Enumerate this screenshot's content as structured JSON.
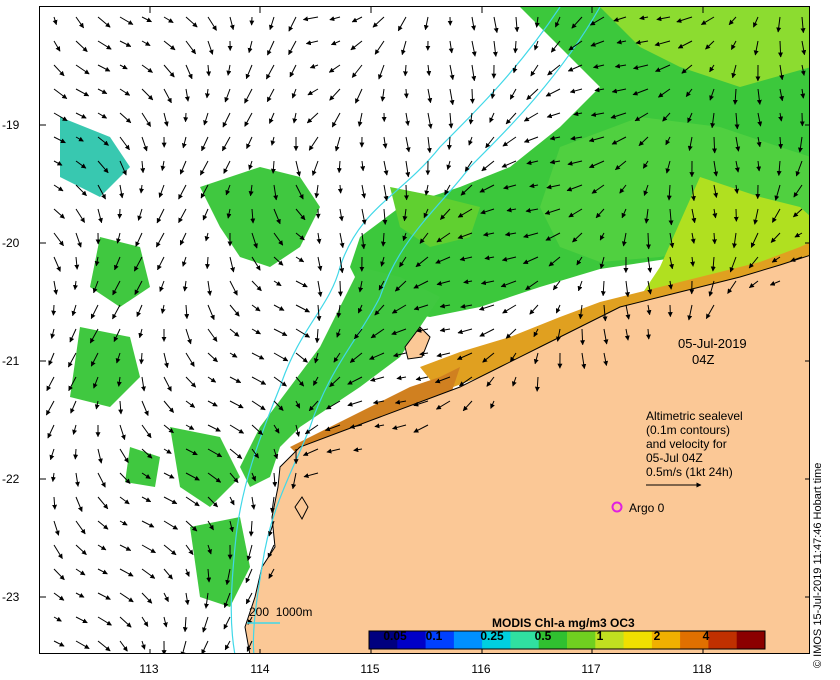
{
  "date_label": "05-Jul-2019",
  "time_label": "04Z",
  "legend": {
    "line1": "Altimetric sealevel",
    "line2": "(0.1m contours)",
    "line3": "and velocity for",
    "line4": "05-Jul 04Z",
    "line5": "0.5m/s (1kt 24h)"
  },
  "argo_label": "Argo 0",
  "bathy_label": "200  1000m",
  "colorbar": {
    "title": "MODIS Chl-a mg/m3 OC3",
    "ticks": [
      "0.05",
      "0.1",
      "0.25",
      "0.5",
      "1",
      "2",
      "4"
    ],
    "colors": [
      "#00007f",
      "#0000c8",
      "#0040ff",
      "#0090ff",
      "#00d0e0",
      "#30e0a0",
      "#30c030",
      "#70d020",
      "#c0e020",
      "#f0e000",
      "#f0b000",
      "#e07000",
      "#c03000",
      "#8b0000"
    ]
  },
  "axes": {
    "x_ticks": [
      "113",
      "114",
      "115",
      "116",
      "117",
      "118"
    ],
    "y_ticks": [
      "-19",
      "-20",
      "-21",
      "-22",
      "-23"
    ]
  },
  "credit": "© IMOS 15-Jul-2019 11:47:46 Hobart time",
  "colors": {
    "land": "#fbc896",
    "coastline": "#000000",
    "bathy_contour": "#40d8e8",
    "argo": "#e020e0"
  }
}
